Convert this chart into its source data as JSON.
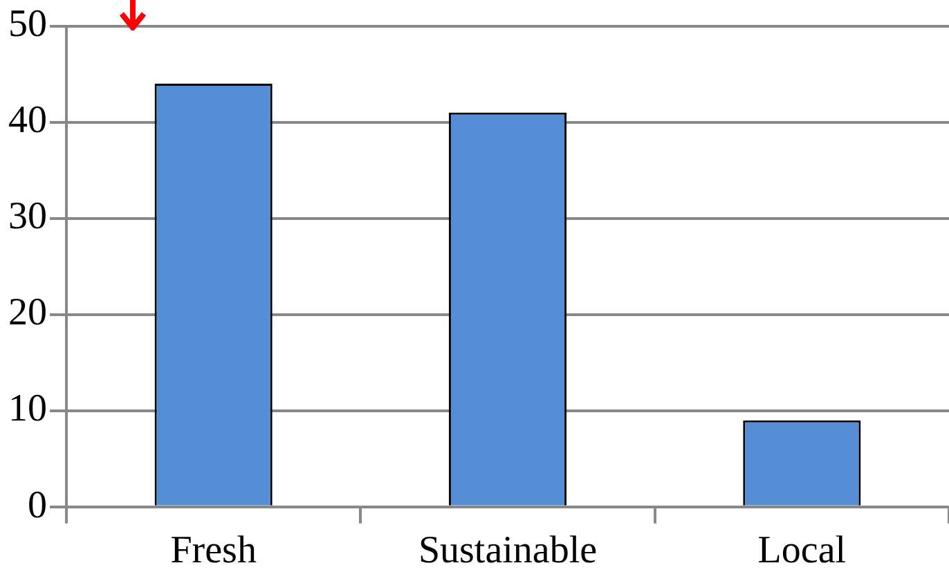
{
  "chart_data": {
    "type": "bar",
    "categories": [
      "Fresh",
      "Sustainable",
      "Local"
    ],
    "values": [
      44,
      41,
      9
    ],
    "color": "#558ed5",
    "ylim": [
      0,
      50
    ],
    "yticks": [
      0,
      10,
      20,
      30,
      40,
      50
    ],
    "grid": "y"
  }
}
